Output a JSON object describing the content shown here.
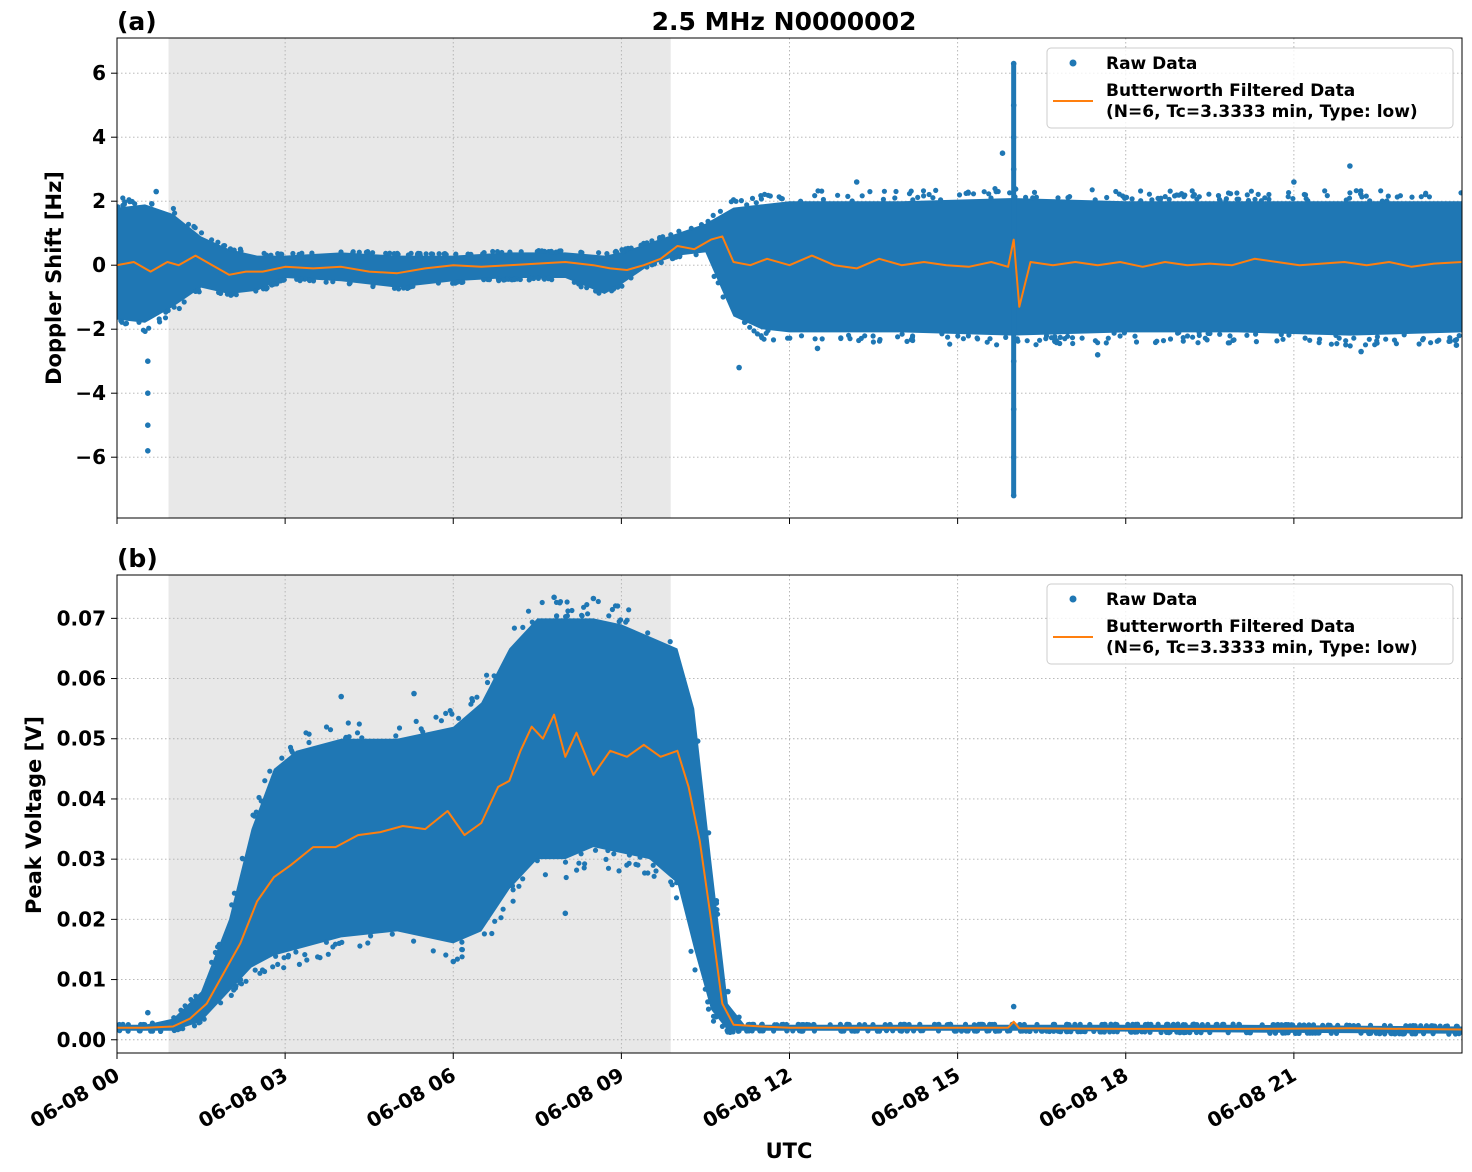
{
  "figure": {
    "title": "2.5 MHz N0000002",
    "xlabel": "UTC",
    "x_tick_labels": [
      "06-08 00",
      "06-08 03",
      "06-08 06",
      "06-08 09",
      "06-08 12",
      "06-08 15",
      "06-08 18",
      "06-08 21"
    ],
    "colors": {
      "raw": "#1f77b4",
      "filtered": "#ff7f0e",
      "shade": "#e8e8e8",
      "grid": "#b0b0b0"
    }
  },
  "chart_data": [
    {
      "type": "scatter",
      "panel_label": "(a)",
      "title": "2.5 MHz N0000002",
      "ylabel": "Doppler Shift [Hz]",
      "x_unit": "hours UTC on 06-08",
      "xlim": [
        0,
        24
      ],
      "ylim": [
        -7.9,
        7.1
      ],
      "y_ticks": [
        -6,
        -4,
        -2,
        0,
        2,
        4,
        6
      ],
      "y_tick_labels": [
        "−6",
        "−4",
        "−2",
        "0",
        "2",
        "4",
        "6"
      ],
      "shaded_interval": [
        0.92,
        9.88
      ],
      "grid": true,
      "legend": {
        "position": "top-right",
        "raw_label": "Raw Data",
        "filtered_label_line1": "Butterworth Filtered Data",
        "filtered_label_line2": "(N=6, Tc=3.3333 min, Type: low)"
      },
      "series": [
        {
          "name": "Raw Data",
          "kind": "scatter-band",
          "x": [
            0.0,
            0.5,
            1.0,
            1.5,
            2.0,
            2.5,
            3.0,
            4.0,
            5.0,
            6.0,
            7.0,
            8.0,
            8.7,
            9.0,
            9.5,
            10.0,
            10.5,
            11.0,
            11.5,
            12.0,
            14.0,
            16.0,
            18.0,
            20.0,
            22.0,
            24.0
          ],
          "upper": [
            1.8,
            1.9,
            1.6,
            0.9,
            0.5,
            0.3,
            0.3,
            0.4,
            0.3,
            0.3,
            0.4,
            0.4,
            0.3,
            0.4,
            0.7,
            1.0,
            1.3,
            1.8,
            1.9,
            2.0,
            2.0,
            2.1,
            2.0,
            2.0,
            2.0,
            2.0
          ],
          "lower": [
            -1.7,
            -1.8,
            -1.3,
            -0.7,
            -0.9,
            -0.8,
            -0.4,
            -0.5,
            -0.7,
            -0.5,
            -0.4,
            -0.4,
            -0.9,
            -0.6,
            0.0,
            0.3,
            0.4,
            -1.6,
            -2.0,
            -2.1,
            -2.1,
            -2.2,
            -2.1,
            -2.1,
            -2.2,
            -2.1
          ],
          "outliers": [
            {
              "x": 0.55,
              "y": -5.8
            },
            {
              "x": 0.55,
              "y": -5.0
            },
            {
              "x": 0.55,
              "y": -4.0
            },
            {
              "x": 0.55,
              "y": -3.0
            },
            {
              "x": 0.7,
              "y": 2.3
            },
            {
              "x": 11.1,
              "y": -3.2
            },
            {
              "x": 12.5,
              "y": -2.6
            },
            {
              "x": 13.2,
              "y": 2.6
            },
            {
              "x": 16.0,
              "y": 6.3
            },
            {
              "x": 16.0,
              "y": 5.0
            },
            {
              "x": 16.0,
              "y": 4.0
            },
            {
              "x": 16.0,
              "y": 3.0
            },
            {
              "x": 16.0,
              "y": -3.0
            },
            {
              "x": 16.0,
              "y": -4.5
            },
            {
              "x": 16.0,
              "y": -6.0
            },
            {
              "x": 16.0,
              "y": -7.2
            },
            {
              "x": 15.8,
              "y": 3.5
            },
            {
              "x": 17.5,
              "y": -2.8
            },
            {
              "x": 22.0,
              "y": 3.1
            },
            {
              "x": 21.0,
              "y": 2.6
            },
            {
              "x": 23.9,
              "y": -2.5
            },
            {
              "x": 22.2,
              "y": -2.7
            }
          ]
        },
        {
          "name": "Butterworth Filtered Data",
          "kind": "line",
          "x": [
            0.0,
            0.3,
            0.6,
            0.9,
            1.1,
            1.4,
            1.7,
            2.0,
            2.3,
            2.6,
            3.0,
            3.5,
            4.0,
            4.5,
            5.0,
            5.5,
            6.0,
            6.5,
            7.0,
            7.5,
            8.0,
            8.5,
            8.8,
            9.1,
            9.4,
            9.7,
            10.0,
            10.3,
            10.6,
            10.8,
            11.0,
            11.3,
            11.6,
            12.0,
            12.4,
            12.8,
            13.2,
            13.6,
            14.0,
            14.4,
            14.8,
            15.2,
            15.6,
            15.9,
            16.0,
            16.1,
            16.3,
            16.7,
            17.1,
            17.5,
            17.9,
            18.3,
            18.7,
            19.1,
            19.5,
            19.9,
            20.3,
            20.7,
            21.1,
            21.5,
            21.9,
            22.3,
            22.7,
            23.1,
            23.5,
            24.0
          ],
          "y": [
            0.0,
            0.1,
            -0.2,
            0.1,
            0.0,
            0.3,
            0.0,
            -0.3,
            -0.2,
            -0.2,
            -0.05,
            -0.1,
            -0.05,
            -0.2,
            -0.25,
            -0.1,
            0.0,
            -0.05,
            0.0,
            0.05,
            0.1,
            0.0,
            -0.1,
            -0.15,
            0.0,
            0.2,
            0.6,
            0.5,
            0.8,
            0.9,
            0.1,
            0.0,
            0.2,
            0.0,
            0.3,
            0.0,
            -0.1,
            0.2,
            0.0,
            0.1,
            0.0,
            -0.05,
            0.1,
            -0.05,
            0.8,
            -1.3,
            0.1,
            0.0,
            0.1,
            0.0,
            0.1,
            -0.05,
            0.1,
            0.0,
            0.05,
            0.0,
            0.2,
            0.1,
            0.0,
            0.05,
            0.1,
            0.0,
            0.1,
            -0.05,
            0.05,
            0.1
          ]
        }
      ]
    },
    {
      "type": "scatter",
      "panel_label": "(b)",
      "ylabel": "Peak Voltage [V]",
      "xlabel": "UTC",
      "x_unit": "hours UTC on 06-08",
      "xlim": [
        0,
        24
      ],
      "ylim": [
        -0.0022,
        0.0772
      ],
      "y_ticks": [
        0.0,
        0.01,
        0.02,
        0.03,
        0.04,
        0.05,
        0.06,
        0.07
      ],
      "y_tick_labels": [
        "0.00",
        "0.01",
        "0.02",
        "0.03",
        "0.04",
        "0.05",
        "0.06",
        "0.07"
      ],
      "shaded_interval": [
        0.92,
        9.88
      ],
      "grid": true,
      "legend": {
        "position": "top-right",
        "raw_label": "Raw Data",
        "filtered_label_line1": "Butterworth Filtered Data",
        "filtered_label_line2": "(N=6, Tc=3.3333 min, Type: low)"
      },
      "series": [
        {
          "name": "Raw Data",
          "kind": "scatter-band",
          "x": [
            0.0,
            0.5,
            1.0,
            1.5,
            2.0,
            2.4,
            2.8,
            3.2,
            4.0,
            5.0,
            6.0,
            6.5,
            7.0,
            7.5,
            8.0,
            8.5,
            9.0,
            9.5,
            10.0,
            10.3,
            10.6,
            10.9,
            11.2,
            12.0,
            16.0,
            20.0,
            24.0
          ],
          "upper": [
            0.0025,
            0.0025,
            0.0035,
            0.008,
            0.02,
            0.035,
            0.045,
            0.048,
            0.05,
            0.05,
            0.052,
            0.056,
            0.065,
            0.07,
            0.07,
            0.07,
            0.069,
            0.067,
            0.065,
            0.055,
            0.03,
            0.006,
            0.0025,
            0.0025,
            0.0025,
            0.0025,
            0.0022
          ],
          "lower": [
            0.0015,
            0.0015,
            0.0015,
            0.003,
            0.008,
            0.012,
            0.014,
            0.015,
            0.017,
            0.018,
            0.016,
            0.018,
            0.025,
            0.03,
            0.03,
            0.032,
            0.031,
            0.03,
            0.026,
            0.015,
            0.005,
            0.0015,
            0.0015,
            0.0015,
            0.0015,
            0.0012,
            0.001
          ],
          "outliers": [
            {
              "x": 0.55,
              "y": 0.0045
            },
            {
              "x": 4.0,
              "y": 0.057
            },
            {
              "x": 5.3,
              "y": 0.0575
            },
            {
              "x": 7.8,
              "y": 0.0735
            },
            {
              "x": 8.5,
              "y": 0.0733
            },
            {
              "x": 6.0,
              "y": 0.013
            },
            {
              "x": 8.0,
              "y": 0.021
            },
            {
              "x": 16.0,
              "y": 0.0055
            },
            {
              "x": 10.9,
              "y": 0.008
            }
          ]
        },
        {
          "name": "Butterworth Filtered Data",
          "kind": "line",
          "x": [
            0.0,
            0.5,
            1.0,
            1.3,
            1.6,
            1.9,
            2.2,
            2.5,
            2.8,
            3.1,
            3.5,
            3.9,
            4.3,
            4.7,
            5.1,
            5.5,
            5.9,
            6.2,
            6.5,
            6.8,
            7.0,
            7.2,
            7.4,
            7.6,
            7.8,
            8.0,
            8.2,
            8.5,
            8.8,
            9.1,
            9.4,
            9.7,
            10.0,
            10.2,
            10.4,
            10.6,
            10.8,
            11.0,
            11.5,
            12.0,
            14.0,
            15.9,
            16.0,
            16.1,
            18.0,
            20.0,
            22.0,
            24.0
          ],
          "y": [
            0.002,
            0.002,
            0.0022,
            0.0035,
            0.006,
            0.011,
            0.016,
            0.023,
            0.027,
            0.029,
            0.032,
            0.032,
            0.034,
            0.0345,
            0.0355,
            0.035,
            0.038,
            0.034,
            0.036,
            0.042,
            0.043,
            0.048,
            0.052,
            0.05,
            0.054,
            0.047,
            0.051,
            0.044,
            0.048,
            0.047,
            0.049,
            0.047,
            0.048,
            0.042,
            0.033,
            0.02,
            0.006,
            0.0025,
            0.0022,
            0.002,
            0.002,
            0.002,
            0.003,
            0.0019,
            0.0018,
            0.0018,
            0.0019,
            0.0017
          ]
        }
      ]
    }
  ]
}
